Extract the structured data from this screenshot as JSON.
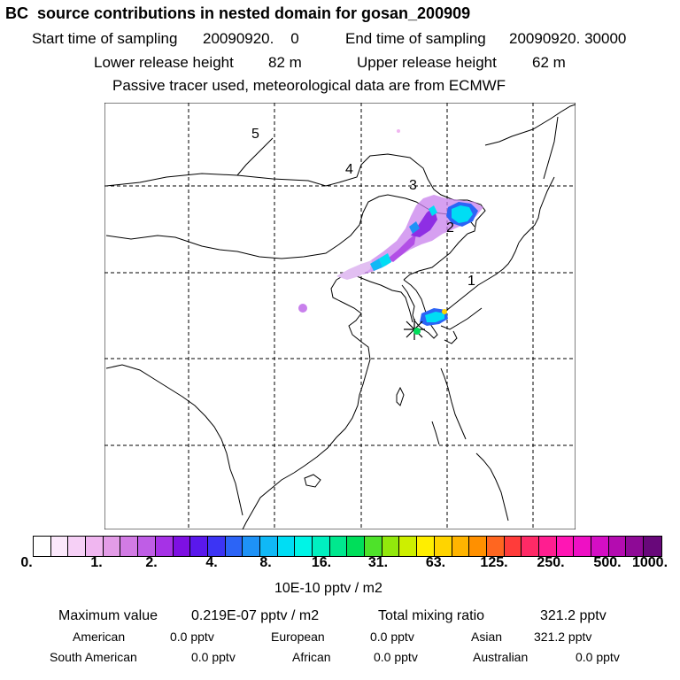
{
  "header": {
    "title": "BC  source contributions in nested domain for gosan_200909",
    "start_label": "Start time of sampling",
    "start_value": "20090920.    0",
    "end_label": "End time of sampling",
    "end_value": "20090920. 30000",
    "lower_label": "Lower release height",
    "lower_value": "82 m",
    "upper_label": "Upper release height",
    "upper_value": "62 m",
    "tracer_note": "Passive tracer used, meteorological data are from ECMWF"
  },
  "map": {
    "labels": [
      "1",
      "2",
      "3",
      "4",
      "5"
    ]
  },
  "colorbar": {
    "colors": [
      "#ffffff",
      "#fbe8fb",
      "#f6d0f6",
      "#f0b6f0",
      "#e39ce7",
      "#d27be4",
      "#bf5de6",
      "#a632e6",
      "#7e10e2",
      "#5a18ec",
      "#3c34f4",
      "#2c64f6",
      "#1e92f6",
      "#10b8f6",
      "#00ddf4",
      "#00f4e6",
      "#00f0c0",
      "#00e88e",
      "#00de5a",
      "#4ee22a",
      "#92e80c",
      "#cdef00",
      "#ffee00",
      "#ffd400",
      "#ffb400",
      "#ff9000",
      "#ff6620",
      "#ff3c3a",
      "#ff2a66",
      "#ff1e90",
      "#ff16b4",
      "#ee10c4",
      "#d40ec4",
      "#b40cb0",
      "#8e0a96",
      "#68087a"
    ],
    "ticks": [
      "0.",
      "1.",
      "2.",
      "4.",
      "8.",
      "16.",
      "31.",
      "63.",
      "125.",
      "250.",
      "500.",
      "1000."
    ],
    "unit": "10E-10 pptv / m2"
  },
  "summary": {
    "max_label": "Maximum value",
    "max_value": "0.219E-07 pptv / m2",
    "total_label": "Total mixing ratio",
    "total_value": "321.2 pptv",
    "regions": [
      {
        "name": "American",
        "value": "0.0 pptv"
      },
      {
        "name": "European",
        "value": "0.0 pptv"
      },
      {
        "name": "Asian",
        "value": "321.2 pptv"
      },
      {
        "name": "South American",
        "value": "0.0 pptv"
      },
      {
        "name": "African",
        "value": "0.0 pptv"
      },
      {
        "name": "Australian",
        "value": "0.0 pptv"
      }
    ]
  }
}
